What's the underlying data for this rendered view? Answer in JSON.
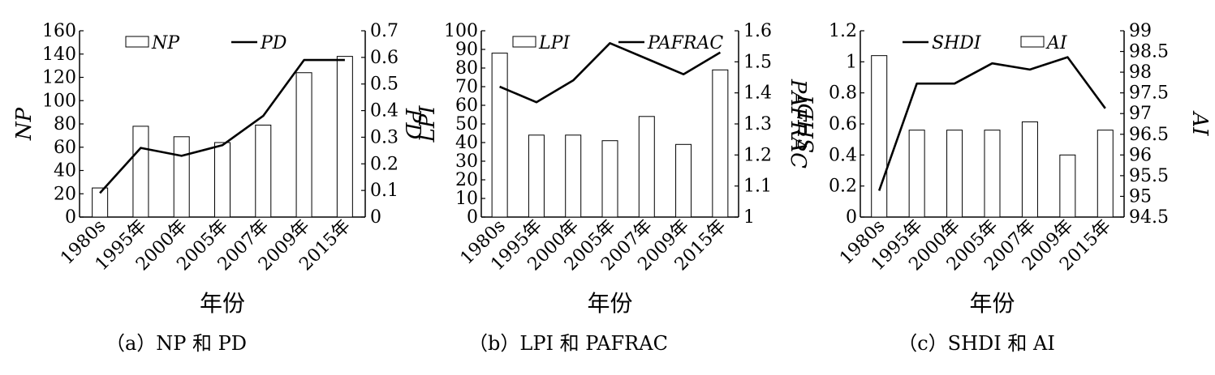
{
  "chart_data": [
    {
      "type": "bar",
      "categories": [
        "1980s",
        "1995年",
        "2000年",
        "2005年",
        "2007年",
        "2009年",
        "2015年"
      ],
      "series": [
        {
          "name": "NP",
          "kind": "bar",
          "axis": "left",
          "values": [
            25,
            78,
            69,
            64,
            79,
            124,
            138
          ]
        },
        {
          "name": "PD",
          "kind": "line",
          "axis": "right",
          "values": [
            0.09,
            0.26,
            0.23,
            0.27,
            0.38,
            0.59,
            0.59
          ]
        }
      ],
      "xlabel": "年份",
      "ylabel": "NP",
      "y2label": "PD",
      "ylim": [
        0,
        160
      ],
      "yticks": [
        0,
        20,
        40,
        60,
        80,
        100,
        120,
        140,
        160
      ],
      "y2lim": [
        0,
        0.7
      ],
      "y2ticks": [
        "0",
        "0.1",
        "0.2",
        "0.3",
        "0.4",
        "0.5",
        "0.6",
        "0.7"
      ],
      "legend": "top",
      "caption": "（a）NP 和 PD"
    },
    {
      "type": "bar",
      "categories": [
        "1980s",
        "1995年",
        "2000年",
        "2005年",
        "2007年",
        "2009年",
        "2015年"
      ],
      "series": [
        {
          "name": "LPI",
          "kind": "bar",
          "axis": "left",
          "values": [
            88,
            44,
            44,
            41,
            54,
            39,
            79
          ]
        },
        {
          "name": "PAFRAC",
          "kind": "line",
          "axis": "right",
          "values": [
            1.42,
            1.37,
            1.44,
            1.56,
            1.51,
            1.46,
            1.53
          ]
        }
      ],
      "xlabel": "年份",
      "ylabel": "LPI",
      "y2label": "PAFRAC",
      "ylim": [
        0,
        100
      ],
      "yticks": [
        0,
        10,
        20,
        30,
        40,
        50,
        60,
        70,
        80,
        90,
        100
      ],
      "y2lim": [
        1,
        1.6
      ],
      "y2ticks": [
        "1",
        "1.1",
        "1.2",
        "1.3",
        "1.4",
        "1.5",
        "1.6"
      ],
      "legend": "top",
      "caption": "（b）LPI 和 PAFRAC"
    },
    {
      "type": "bar",
      "categories": [
        "1980s",
        "1995年",
        "2000年",
        "2005年",
        "2007年",
        "2009年",
        "2015年"
      ],
      "series": [
        {
          "name": "SHDI",
          "kind": "line",
          "axis": "left",
          "values": [
            0.17,
            0.86,
            0.86,
            0.99,
            0.95,
            1.03,
            0.7
          ]
        },
        {
          "name": "AI",
          "kind": "bar",
          "axis": "right",
          "values": [
            98.4,
            96.6,
            96.6,
            96.6,
            96.8,
            96.0,
            96.6
          ]
        }
      ],
      "xlabel": "年份",
      "ylabel": "SHDI",
      "y2label": "AI",
      "ylim": [
        0,
        1.2
      ],
      "yticks": [
        "0",
        "0.2",
        "0.4",
        "0.6",
        "0.8",
        "1",
        "1.2"
      ],
      "y2lim": [
        94.5,
        99
      ],
      "y2ticks": [
        "94.5",
        "95",
        "95.5",
        "96",
        "96.5",
        "97",
        "97.5",
        "98",
        "98.5",
        "99"
      ],
      "legend": "top",
      "caption": "（c）SHDI 和 AI"
    }
  ]
}
